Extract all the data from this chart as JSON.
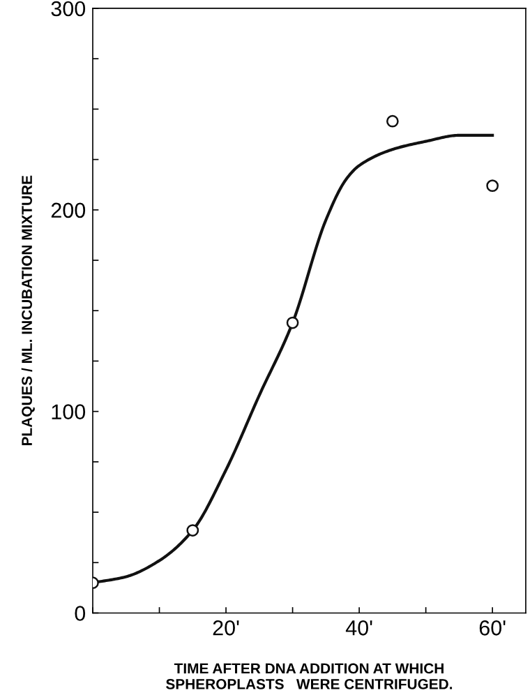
{
  "chart_data": {
    "type": "scatter",
    "xlabel": "TIME AFTER DNA ADDITION AT WHICH\nSPHEROPLASTS   WERE CENTRIFUGED.",
    "ylabel": "PLAQUES / ML. INCUBATION MIXTURE",
    "series": [
      {
        "type": "line",
        "color": "#111111",
        "marker": "none",
        "x": [
          0,
          5,
          10,
          15,
          20,
          25,
          30,
          35,
          38,
          40,
          45,
          50,
          55,
          60
        ],
        "values": [
          15,
          18,
          26,
          41,
          71,
          108,
          144,
          195,
          215,
          222,
          230,
          234,
          237,
          237
        ]
      },
      {
        "color": "#111111",
        "marker": "circle",
        "x": [
          0,
          15,
          30,
          45,
          60
        ],
        "values": [
          15,
          41,
          144,
          244,
          212
        ]
      }
    ],
    "xlim": [
      0,
      65
    ],
    "ylim": [
      0,
      300
    ],
    "xticks": [
      {
        "value": 0,
        "label": null
      },
      {
        "value": 10,
        "label": null
      },
      {
        "value": 20,
        "label": "20'"
      },
      {
        "value": 30,
        "label": null
      },
      {
        "value": 40,
        "label": "40'"
      },
      {
        "value": 50,
        "label": null
      },
      {
        "value": 60,
        "label": "60'"
      }
    ],
    "yticks": [
      0,
      {
        "value": 25,
        "label": null
      },
      {
        "value": 50,
        "label": null
      },
      {
        "value": 75,
        "label": null
      },
      100,
      {
        "value": 125,
        "label": null
      },
      {
        "value": 150,
        "label": null
      },
      {
        "value": 175,
        "label": null
      },
      200,
      {
        "value": 225,
        "label": null
      },
      {
        "value": 250,
        "label": null
      },
      {
        "value": 275,
        "label": null
      },
      300
    ],
    "grid": false,
    "legend": false
  }
}
